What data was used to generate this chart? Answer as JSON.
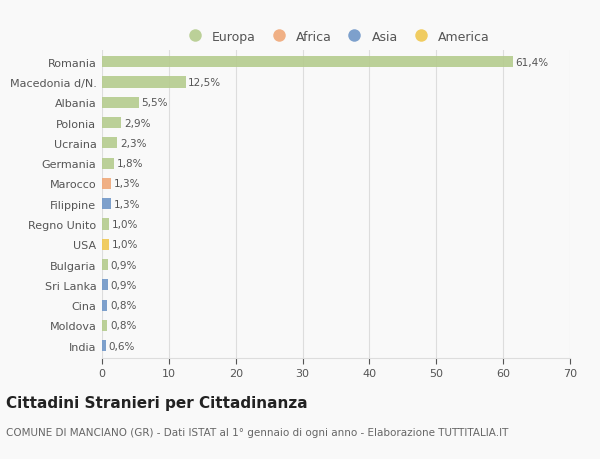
{
  "countries": [
    "Romania",
    "Macedonia d/N.",
    "Albania",
    "Polonia",
    "Ucraina",
    "Germania",
    "Marocco",
    "Filippine",
    "Regno Unito",
    "USA",
    "Bulgaria",
    "Sri Lanka",
    "Cina",
    "Moldova",
    "India"
  ],
  "values": [
    61.4,
    12.5,
    5.5,
    2.9,
    2.3,
    1.8,
    1.3,
    1.3,
    1.0,
    1.0,
    0.9,
    0.9,
    0.8,
    0.8,
    0.6
  ],
  "labels": [
    "61,4%",
    "12,5%",
    "5,5%",
    "2,9%",
    "2,3%",
    "1,8%",
    "1,3%",
    "1,3%",
    "1,0%",
    "1,0%",
    "0,9%",
    "0,9%",
    "0,8%",
    "0,8%",
    "0,6%"
  ],
  "colors": [
    "#b5cc8e",
    "#b5cc8e",
    "#b5cc8e",
    "#b5cc8e",
    "#b5cc8e",
    "#b5cc8e",
    "#f0a878",
    "#7097c8",
    "#b5cc8e",
    "#f0c850",
    "#b5cc8e",
    "#7097c8",
    "#7097c8",
    "#b5cc8e",
    "#7097c8"
  ],
  "continent_colors": {
    "Europa": "#b5cc8e",
    "Africa": "#f0a878",
    "Asia": "#7097c8",
    "America": "#f0c850"
  },
  "title": "Cittadini Stranieri per Cittadinanza",
  "subtitle": "COMUNE DI MANCIANO (GR) - Dati ISTAT al 1° gennaio di ogni anno - Elaborazione TUTTITALIA.IT",
  "xlim": [
    0,
    70
  ],
  "xticks": [
    0,
    10,
    20,
    30,
    40,
    50,
    60,
    70
  ],
  "background_color": "#f9f9f9",
  "grid_color": "#dddddd",
  "bar_height": 0.55,
  "title_fontsize": 11,
  "subtitle_fontsize": 7.5,
  "label_fontsize": 7.5,
  "tick_fontsize": 8,
  "legend_fontsize": 9
}
